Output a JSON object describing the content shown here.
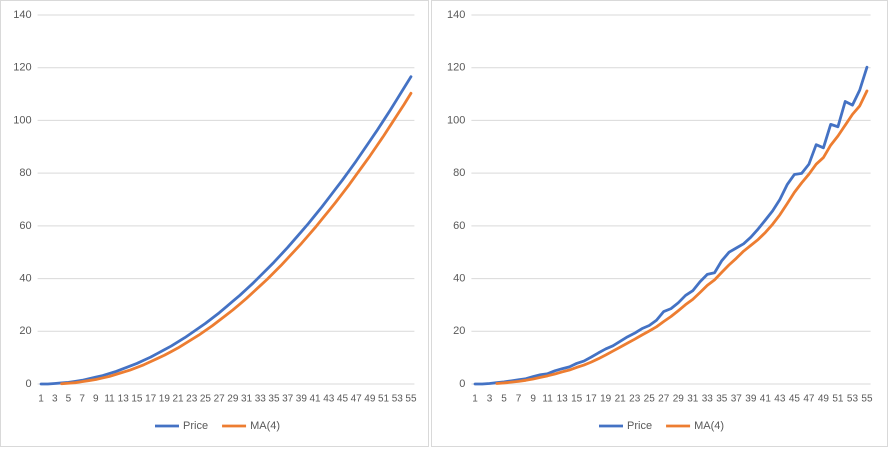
{
  "chart_data": [
    {
      "type": "line",
      "categories": [
        1,
        null,
        3,
        null,
        5,
        null,
        7,
        null,
        9,
        null,
        11,
        null,
        13,
        null,
        15,
        null,
        17,
        null,
        19,
        null,
        21,
        null,
        23,
        null,
        25,
        null,
        27,
        null,
        29,
        null,
        31,
        null,
        33,
        null,
        35,
        null,
        37,
        null,
        39,
        null,
        41,
        null,
        43,
        null,
        45,
        null,
        47,
        null,
        49,
        null,
        51,
        null,
        53,
        null,
        55
      ],
      "series": [
        {
          "name": "Price",
          "color": "#4472c4",
          "values": [
            0,
            0,
            0.2,
            0.4,
            0.6,
            1,
            1.4,
            2,
            2.6,
            3.2,
            4,
            4.8,
            5.8,
            6.8,
            7.8,
            9,
            10.2,
            11.6,
            13,
            14.4,
            16,
            17.6,
            19.4,
            21.2,
            23,
            25,
            27,
            29.2,
            31.4,
            33.6,
            36,
            38.4,
            41,
            43.6,
            46.2,
            49,
            51.8,
            54.8,
            57.8,
            60.8,
            64,
            67.2,
            70.6,
            74,
            77.4,
            81,
            84.6,
            88.4,
            92.2,
            96,
            100,
            104,
            108.2,
            112.4,
            116.6
          ]
        },
        {
          "name": "MA(4)",
          "color": "#ed7d31",
          "values": [
            null,
            null,
            null,
            0.1,
            0.3,
            0.5,
            0.9,
            1.3,
            1.7,
            2.3,
            2.9,
            3.7,
            4.5,
            5.3,
            6.3,
            7.3,
            8.5,
            9.7,
            10.9,
            12.3,
            13.7,
            15.3,
            16.9,
            18.5,
            20.3,
            22.1,
            24.1,
            26.1,
            28.1,
            30.3,
            32.5,
            34.9,
            37.3,
            39.7,
            42.3,
            44.9,
            47.7,
            50.5,
            53.3,
            56.3,
            59.3,
            62.5,
            65.7,
            68.9,
            72.3,
            75.7,
            79.3,
            82.9,
            86.5,
            90.3,
            94.1,
            98.1,
            102.1,
            106.1,
            110.3
          ]
        }
      ],
      "ylim": [
        0,
        140
      ],
      "yticks": [
        0,
        20,
        40,
        60,
        80,
        100,
        120,
        140
      ],
      "grid": true,
      "legend": "bottom"
    },
    {
      "type": "line",
      "categories": [
        1,
        null,
        3,
        null,
        5,
        null,
        7,
        null,
        9,
        null,
        11,
        null,
        13,
        null,
        15,
        null,
        17,
        null,
        19,
        null,
        21,
        null,
        23,
        null,
        25,
        null,
        27,
        null,
        29,
        null,
        31,
        null,
        33,
        null,
        35,
        null,
        37,
        null,
        39,
        null,
        41,
        null,
        43,
        null,
        45,
        null,
        47,
        null,
        49,
        null,
        51,
        null,
        53,
        null,
        55
      ],
      "series": [
        {
          "name": "Price",
          "color": "#4472c4",
          "values": [
            0,
            0,
            0.2,
            0.5,
            0.8,
            1.2,
            1.6,
            2,
            2.8,
            3.5,
            3.9,
            5,
            5.8,
            6.5,
            7.8,
            8.7,
            10.2,
            11.8,
            13.3,
            14.5,
            16.2,
            17.9,
            19.3,
            21,
            22.2,
            24.2,
            27.5,
            28.6,
            30.8,
            33.6,
            35.4,
            38.8,
            41.6,
            42.2,
            46.8,
            50,
            51.6,
            53.2,
            55.7,
            58.8,
            62.2,
            65.7,
            70,
            75.6,
            79.5,
            79.9,
            83.4,
            90.8,
            89.6,
            98.5,
            97.6,
            107.2,
            105.8,
            111.5,
            120.2
          ]
        },
        {
          "name": "MA(4)",
          "color": "#ed7d31",
          "values": [
            null,
            null,
            null,
            0.2,
            0.4,
            0.7,
            1,
            1.4,
            1.9,
            2.5,
            3.1,
            3.8,
            4.6,
            5.3,
            6.3,
            7.2,
            8.3,
            9.6,
            11,
            12.5,
            14,
            15.5,
            17,
            18.6,
            20.1,
            21.7,
            23.7,
            25.6,
            27.8,
            30.1,
            32.1,
            34.7,
            37.4,
            39.5,
            42.4,
            45.2,
            47.7,
            50.4,
            52.6,
            54.8,
            57.5,
            60.6,
            64.2,
            68.4,
            72.7,
            76.3,
            79.6,
            83.4,
            85.9,
            90.6,
            94.1,
            98.2,
            102.3,
            105.5,
            111.2
          ]
        }
      ],
      "ylim": [
        0,
        140
      ],
      "yticks": [
        0,
        20,
        40,
        60,
        80,
        100,
        120,
        140
      ],
      "grid": true,
      "legend": "bottom"
    }
  ]
}
